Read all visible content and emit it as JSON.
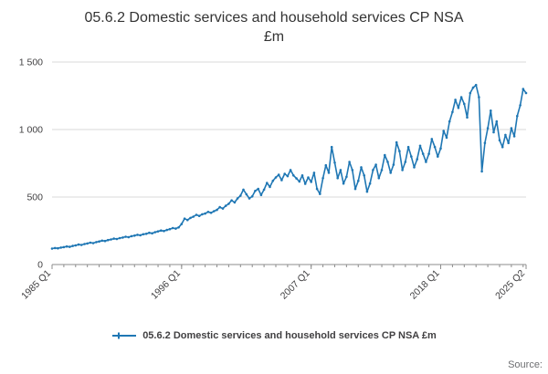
{
  "header": {
    "title_line1": "05.6.2 Domestic services and household services CP NSA",
    "title_line2": "£m"
  },
  "legend": {
    "label": "05.6.2 Domestic services and household services CP NSA £m"
  },
  "footer": {
    "source_label": "Source:"
  },
  "colors": {
    "line": "#1f77b4",
    "grid": "#d9d9d9",
    "axis": "#8c8c8c",
    "text": "#414042",
    "muted": "#6d6e71"
  },
  "chart_data": {
    "type": "line",
    "title": "05.6.2 Domestic services and household services CP NSA £m",
    "frequency": "quarterly",
    "x_start": "1985 Q1",
    "x_end": "2025 Q2",
    "grid": "horizontal",
    "legend_position": "bottom",
    "ylim": [
      0,
      1500
    ],
    "yticks": [
      {
        "value": 0,
        "label": "0"
      },
      {
        "value": 500,
        "label": "500"
      },
      {
        "value": 1000,
        "label": "1 000"
      },
      {
        "value": 1500,
        "label": "1 500"
      }
    ],
    "xticks": [
      {
        "index": 0,
        "label": "1985 Q1"
      },
      {
        "index": 44,
        "label": "1996 Q1"
      },
      {
        "index": 88,
        "label": "2007 Q1"
      },
      {
        "index": 132,
        "label": "2018 Q1"
      },
      {
        "index": 161,
        "label": "2025 Q2"
      }
    ],
    "series": [
      {
        "name": "05.6.2 Domestic services and household services CP NSA £m",
        "values": [
          118,
          122,
          120,
          126,
          129,
          134,
          131,
          138,
          142,
          148,
          145,
          152,
          156,
          162,
          159,
          166,
          171,
          177,
          174,
          181,
          186,
          192,
          189,
          196,
          200,
          206,
          203,
          210,
          214,
          220,
          217,
          224,
          228,
          235,
          231,
          240,
          245,
          252,
          248,
          256,
          262,
          270,
          266,
          275,
          300,
          340,
          330,
          345,
          355,
          368,
          360,
          372,
          378,
          390,
          383,
          395,
          405,
          425,
          415,
          435,
          450,
          475,
          460,
          490,
          510,
          555,
          520,
          490,
          505,
          545,
          560,
          515,
          555,
          605,
          575,
          620,
          645,
          665,
          625,
          672,
          655,
          700,
          660,
          638,
          615,
          660,
          598,
          645,
          612,
          680,
          560,
          523,
          640,
          735,
          680,
          870,
          755,
          640,
          700,
          600,
          650,
          760,
          700,
          560,
          620,
          720,
          660,
          540,
          600,
          700,
          740,
          640,
          700,
          810,
          760,
          680,
          740,
          905,
          840,
          700,
          760,
          870,
          800,
          720,
          780,
          880,
          820,
          760,
          820,
          930,
          870,
          800,
          860,
          990,
          940,
          1060,
          1130,
          1220,
          1160,
          1240,
          1190,
          1090,
          1270,
          1310,
          1330,
          1240,
          690,
          900,
          1010,
          1140,
          980,
          1060,
          920,
          870,
          960,
          900,
          1010,
          950,
          1100,
          1180,
          1300,
          1270
        ]
      }
    ]
  }
}
